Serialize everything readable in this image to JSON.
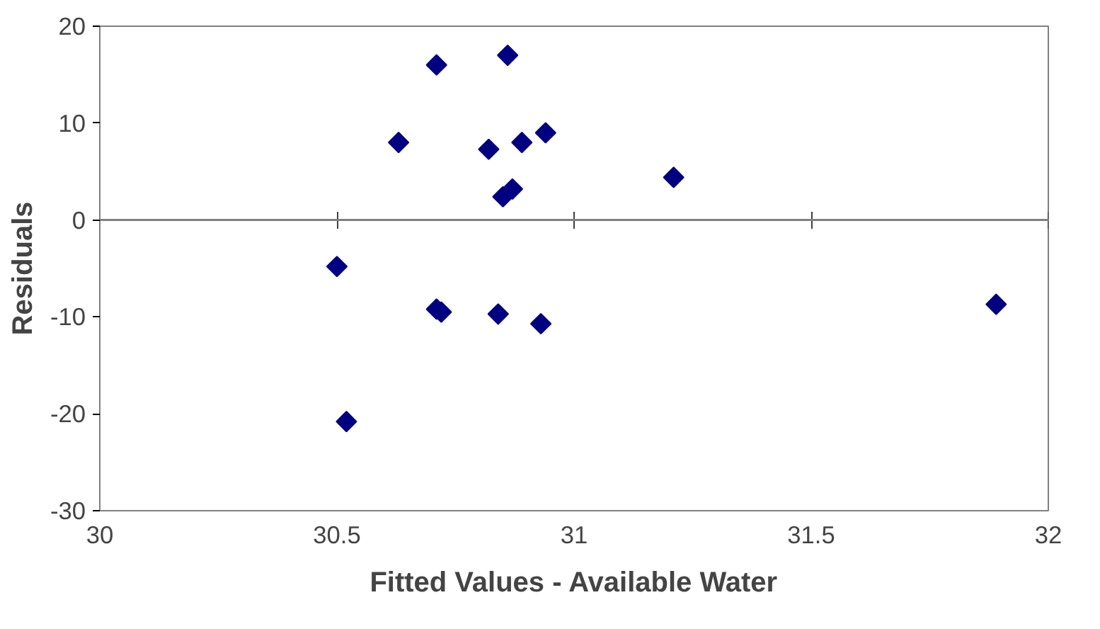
{
  "chart_data": {
    "type": "scatter",
    "xlabel": "Fitted Values - Available Water",
    "ylabel": "Residuals",
    "x": [
      30.71,
      30.86,
      30.63,
      30.82,
      30.89,
      30.94,
      31.21,
      30.85,
      30.87,
      30.5,
      30.71,
      30.72,
      30.84,
      30.93,
      30.52,
      31.89
    ],
    "series": [
      {
        "color": "#000080",
        "values": [
          16.0,
          17.0,
          8.0,
          7.3,
          8.0,
          9.0,
          4.4,
          2.4,
          3.2,
          -4.8,
          -9.2,
          -9.5,
          -9.7,
          -10.7,
          -20.8,
          -8.7
        ]
      }
    ],
    "xlim": [
      30,
      32
    ],
    "ylim": [
      -30,
      20
    ],
    "xticks": [
      30,
      30.5,
      31,
      31.5,
      32
    ],
    "yticks": [
      -30,
      -20,
      -10,
      0,
      10,
      20
    ],
    "marker": "diamond",
    "grid": false,
    "ref_lines": [
      {
        "axis": "y",
        "value": 0,
        "color": "#808080"
      }
    ]
  }
}
